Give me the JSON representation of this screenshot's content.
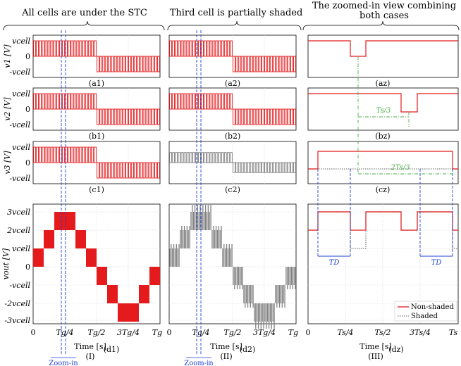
{
  "titles": {
    "col1": "All cells are under the STC",
    "col2": "Third cell is partially shaded",
    "col3a": "The zoomed-in view combining",
    "col3b": "both cases"
  },
  "colors": {
    "non_shaded": "#e41a1c",
    "shaded": "#7f7f7f",
    "marker": "#1f3fd8",
    "green": "#4daf4a"
  },
  "ylabels": {
    "v1": "v1 [V]",
    "v2": "v2 [V]",
    "v3": "v3 [V]",
    "vout": "vout [V]"
  },
  "small_ticks": {
    "pos": "vcell",
    "zero": "0",
    "neg": "-vcell"
  },
  "big_ticks": [
    "3vcell",
    "2vcell",
    "vcell",
    "0",
    "-vcell",
    "-2vcell",
    "-3vcell"
  ],
  "panel_labels": {
    "a1": "(a1)",
    "a2": "(a2)",
    "az": "(az)",
    "b1": "(b1)",
    "b2": "(b2)",
    "bz": "(bz)",
    "c1": "(c1)",
    "c2": "(c2)",
    "cz": "(cz)",
    "d1": "(d1)",
    "d2": "(d2)",
    "dz": "(dz)"
  },
  "xticks_g": [
    "0",
    "Tg/4",
    "Tg/2",
    "3Tg/4",
    "Tg"
  ],
  "xticks_s": [
    "0",
    "Ts/4",
    "Ts/2",
    "3Ts/4",
    "Ts"
  ],
  "xlabel": "Time [s]",
  "col_numerals": [
    "(I)",
    "(II)",
    "(III)"
  ],
  "zoom_label": "Zoom-in",
  "annotations": {
    "ts3": "Ts/3",
    "ts23": "2Ts/3",
    "td": "TD"
  },
  "legend": {
    "non_shaded": "Non-shaded",
    "shaded": "Shaded"
  },
  "chart_data": [
    {
      "type": "line",
      "panel": "a1",
      "x": [
        "0",
        "Tg/4",
        "Tg/2",
        "3Tg/4",
        "Tg"
      ],
      "series": [
        {
          "name": "",
          "values": [
            1,
            1,
            -1,
            -1,
            0
          ]
        }
      ],
      "ylabel": "v1 [V]",
      "ylim": [
        "-vcell",
        "vcell"
      ],
      "note_visual": "PWM square wave between 0 and +vcell for the first half-cycle, 0 and -vcell for the second"
    },
    {
      "type": "line",
      "panel": "c2",
      "series": [
        {
          "name": "",
          "values": [
            0.45,
            -0.45
          ]
        }
      ],
      "ylabel": "v3 [V]"
    },
    {
      "type": "line",
      "panel": "d1",
      "x": [
        "0",
        "Tg/4",
        "Tg/2",
        "3Tg/4",
        "Tg"
      ],
      "series": [
        {
          "name": "",
          "values": [
            0,
            3,
            0,
            -3,
            0
          ]
        }
      ],
      "ylabel": "vout [V]",
      "ylim": [
        -3,
        3
      ]
    },
    {
      "type": "line",
      "panel": "dz",
      "series": [
        {
          "name": "Non-shaded",
          "values": [
            2,
            3,
            2,
            3,
            2,
            3,
            2
          ]
        },
        {
          "name": "Shaded",
          "values": [
            2,
            3,
            2,
            3,
            2,
            3,
            2
          ]
        }
      ],
      "legend": "bottom-right"
    }
  ]
}
